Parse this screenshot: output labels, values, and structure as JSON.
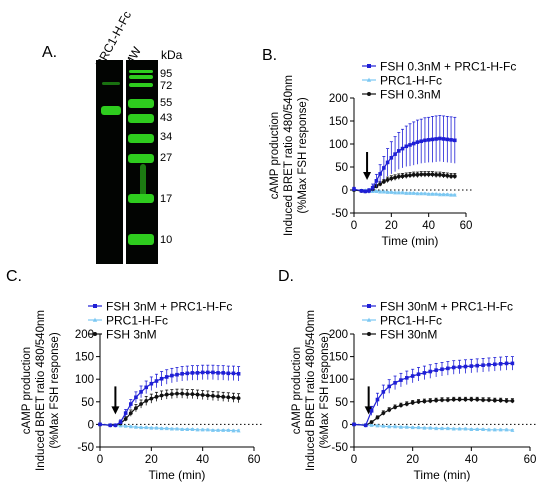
{
  "panels": {
    "a": {
      "label": "A."
    },
    "b": {
      "label": "B."
    },
    "c": {
      "label": "C."
    },
    "d": {
      "label": "D."
    }
  },
  "blot": {
    "lanes": [
      "PRC1-H-Fc",
      "MW"
    ],
    "unit": "kDa",
    "markers": [
      "95",
      "72",
      "55",
      "43",
      "34",
      "27",
      "17",
      "10"
    ]
  },
  "chart_data": [
    {
      "type": "line",
      "panel": "B",
      "ylabel": [
        "cAMP production",
        "Induced BRET ratio 480/540nm",
        "(%Max FSH response)"
      ],
      "xlabel": "Time (min)",
      "xlim": [
        0,
        60
      ],
      "ylim": [
        -50,
        200
      ],
      "xticks": [
        0,
        20,
        40,
        60
      ],
      "yticks": [
        -50,
        0,
        50,
        100,
        150,
        200
      ],
      "legend": "top-right",
      "annotation": "arrow at t≈7 min",
      "series": [
        {
          "name": "FSH 0.3nM + PRC1-H-Fc",
          "color": "#1f1fd6",
          "marker": "square",
          "x": [
            0,
            4,
            6,
            8,
            10,
            12,
            14,
            16,
            18,
            20,
            22,
            24,
            26,
            28,
            30,
            32,
            34,
            36,
            38,
            40,
            42,
            44,
            46,
            48,
            50,
            52,
            54
          ],
          "y": [
            2,
            -2,
            -3,
            -2,
            5,
            20,
            35,
            48,
            60,
            70,
            78,
            85,
            90,
            95,
            98,
            101,
            104,
            106,
            108,
            109,
            110,
            111,
            112,
            111,
            110,
            109,
            108
          ],
          "err": [
            4,
            3,
            3,
            5,
            8,
            14,
            20,
            25,
            30,
            35,
            38,
            40,
            42,
            44,
            46,
            47,
            48,
            48,
            49,
            49,
            50,
            50,
            50,
            50,
            50,
            50,
            50
          ]
        },
        {
          "name": "PRC1-H-Fc",
          "color": "#7cc8f2",
          "marker": "triangle",
          "x": [
            0,
            4,
            6,
            8,
            10,
            12,
            14,
            16,
            18,
            20,
            22,
            24,
            26,
            28,
            30,
            32,
            34,
            36,
            38,
            40,
            42,
            44,
            46,
            48,
            50,
            52,
            54
          ],
          "y": [
            0,
            -1,
            -1,
            -2,
            -3,
            -3,
            -4,
            -4,
            -5,
            -5,
            -6,
            -6,
            -6,
            -7,
            -7,
            -7,
            -8,
            -8,
            -8,
            -9,
            -9,
            -9,
            -10,
            -10,
            -10,
            -11,
            -11
          ],
          "err": [
            2,
            2,
            2,
            2,
            2,
            2,
            2,
            2,
            2,
            2,
            2,
            2,
            2,
            2,
            2,
            2,
            2,
            2,
            2,
            2,
            2,
            2,
            2,
            2,
            2,
            2,
            2
          ]
        },
        {
          "name": "FSH 0.3nM",
          "color": "#111111",
          "marker": "circle",
          "x": [
            0,
            4,
            6,
            8,
            10,
            12,
            14,
            16,
            18,
            20,
            22,
            24,
            26,
            28,
            30,
            32,
            34,
            36,
            38,
            40,
            42,
            44,
            46,
            48,
            50,
            52,
            54
          ],
          "y": [
            0,
            -2,
            -3,
            -2,
            2,
            8,
            13,
            18,
            22,
            25,
            27,
            29,
            30,
            31,
            32,
            33,
            33,
            34,
            34,
            34,
            34,
            33,
            33,
            32,
            31,
            30,
            30
          ],
          "err": [
            2,
            2,
            2,
            2,
            3,
            4,
            5,
            5,
            6,
            6,
            6,
            6,
            6,
            6,
            6,
            6,
            6,
            6,
            6,
            6,
            6,
            6,
            6,
            6,
            6,
            6,
            6
          ]
        }
      ]
    },
    {
      "type": "line",
      "panel": "C",
      "ylabel": [
        "cAMP production",
        "Induced BRET ratio 480/540nm",
        "(%Max FSH response)"
      ],
      "xlabel": "Time (min)",
      "xlim": [
        0,
        60
      ],
      "ylim": [
        -50,
        200
      ],
      "xticks": [
        0,
        20,
        40,
        60
      ],
      "yticks": [
        -50,
        0,
        50,
        100,
        150,
        200
      ],
      "legend": "top-right",
      "annotation": "arrow at t≈6 min",
      "series": [
        {
          "name": "FSH 3nM + PRC1-H-Fc",
          "color": "#1f1fd6",
          "marker": "square",
          "x": [
            0,
            4,
            6,
            8,
            10,
            12,
            14,
            16,
            18,
            20,
            22,
            24,
            26,
            28,
            30,
            32,
            34,
            36,
            38,
            40,
            42,
            44,
            46,
            48,
            50,
            52,
            54
          ],
          "y": [
            0,
            -2,
            -2,
            5,
            25,
            45,
            60,
            72,
            82,
            90,
            96,
            101,
            105,
            108,
            110,
            112,
            113,
            114,
            114,
            115,
            115,
            115,
            114,
            114,
            113,
            113,
            112
          ],
          "err": [
            3,
            3,
            3,
            5,
            8,
            10,
            12,
            13,
            14,
            15,
            15,
            16,
            16,
            16,
            16,
            16,
            16,
            16,
            16,
            16,
            16,
            16,
            16,
            16,
            16,
            16,
            16
          ]
        },
        {
          "name": "PRC1-H-Fc",
          "color": "#7cc8f2",
          "marker": "triangle",
          "x": [
            0,
            4,
            6,
            8,
            10,
            12,
            14,
            16,
            18,
            20,
            22,
            24,
            26,
            28,
            30,
            32,
            34,
            36,
            38,
            40,
            42,
            44,
            46,
            48,
            50,
            52,
            54
          ],
          "y": [
            0,
            -1,
            -2,
            -3,
            -4,
            -5,
            -6,
            -7,
            -7,
            -8,
            -8,
            -9,
            -9,
            -10,
            -10,
            -11,
            -11,
            -11,
            -12,
            -12,
            -12,
            -13,
            -13,
            -13,
            -13,
            -14,
            -14
          ],
          "err": [
            2,
            2,
            2,
            2,
            2,
            2,
            2,
            2,
            2,
            2,
            2,
            2,
            2,
            2,
            2,
            2,
            2,
            2,
            2,
            2,
            2,
            2,
            2,
            2,
            2,
            2,
            2
          ]
        },
        {
          "name": "FSH 3nM",
          "color": "#111111",
          "marker": "circle",
          "x": [
            0,
            4,
            6,
            8,
            10,
            12,
            14,
            16,
            18,
            20,
            22,
            24,
            26,
            28,
            30,
            32,
            34,
            36,
            38,
            40,
            42,
            44,
            46,
            48,
            50,
            52,
            54
          ],
          "y": [
            0,
            -2,
            -2,
            2,
            12,
            25,
            36,
            45,
            52,
            57,
            61,
            64,
            66,
            67,
            68,
            68,
            67,
            67,
            66,
            65,
            64,
            63,
            62,
            61,
            60,
            59,
            58
          ],
          "err": [
            2,
            2,
            2,
            3,
            5,
            7,
            8,
            9,
            10,
            10,
            10,
            10,
            10,
            10,
            10,
            10,
            10,
            10,
            10,
            10,
            10,
            10,
            10,
            10,
            10,
            10,
            10
          ]
        }
      ]
    },
    {
      "type": "line",
      "panel": "D",
      "ylabel": [
        "cAMP production",
        "Induced BRET ratio 480/540nm",
        "(%Max FSH response)"
      ],
      "xlabel": "Time (min)",
      "xlim": [
        0,
        60
      ],
      "ylim": [
        -50,
        200
      ],
      "xticks": [
        0,
        20,
        40,
        60
      ],
      "yticks": [
        -50,
        0,
        50,
        100,
        150,
        200
      ],
      "legend": "top-right",
      "annotation": "arrow at t≈5 min",
      "series": [
        {
          "name": "FSH 30nM + PRC1-H-Fc",
          "color": "#1f1fd6",
          "marker": "square",
          "x": [
            0,
            4,
            6,
            8,
            10,
            12,
            14,
            16,
            18,
            20,
            22,
            24,
            26,
            28,
            30,
            32,
            34,
            36,
            38,
            40,
            42,
            44,
            46,
            48,
            50,
            52,
            54
          ],
          "y": [
            0,
            -2,
            30,
            55,
            72,
            84,
            92,
            98,
            103,
            107,
            111,
            114,
            117,
            120,
            122,
            124,
            126,
            127,
            128,
            129,
            130,
            131,
            132,
            133,
            134,
            135,
            135
          ],
          "err": [
            3,
            3,
            10,
            14,
            15,
            15,
            15,
            15,
            15,
            15,
            15,
            15,
            15,
            15,
            15,
            15,
            15,
            15,
            15,
            15,
            15,
            15,
            15,
            15,
            15,
            15,
            15
          ]
        },
        {
          "name": "PRC1-H-Fc",
          "color": "#7cc8f2",
          "marker": "triangle",
          "x": [
            0,
            4,
            6,
            8,
            10,
            12,
            14,
            16,
            18,
            20,
            22,
            24,
            26,
            28,
            30,
            32,
            34,
            36,
            38,
            40,
            42,
            44,
            46,
            48,
            50,
            52,
            54
          ],
          "y": [
            0,
            -1,
            -2,
            -3,
            -4,
            -5,
            -5,
            -6,
            -6,
            -7,
            -7,
            -8,
            -8,
            -9,
            -9,
            -9,
            -10,
            -10,
            -10,
            -11,
            -11,
            -11,
            -12,
            -12,
            -12,
            -12,
            -13
          ],
          "err": [
            2,
            2,
            2,
            2,
            2,
            2,
            2,
            2,
            2,
            2,
            2,
            2,
            2,
            2,
            2,
            2,
            2,
            2,
            2,
            2,
            2,
            2,
            2,
            2,
            2,
            2,
            2
          ]
        },
        {
          "name": "FSH 30nM",
          "color": "#111111",
          "marker": "circle",
          "x": [
            0,
            4,
            6,
            8,
            10,
            12,
            14,
            16,
            18,
            20,
            22,
            24,
            26,
            28,
            30,
            32,
            34,
            36,
            38,
            40,
            42,
            44,
            46,
            48,
            50,
            52,
            54
          ],
          "y": [
            0,
            -2,
            5,
            15,
            25,
            32,
            38,
            42,
            45,
            48,
            50,
            51,
            52,
            53,
            54,
            54,
            55,
            55,
            55,
            55,
            55,
            54,
            54,
            53,
            53,
            52,
            52
          ],
          "err": [
            2,
            2,
            3,
            4,
            5,
            5,
            5,
            5,
            5,
            5,
            5,
            5,
            5,
            5,
            5,
            5,
            5,
            5,
            5,
            5,
            5,
            5,
            5,
            5,
            5,
            5,
            5
          ]
        }
      ]
    }
  ]
}
